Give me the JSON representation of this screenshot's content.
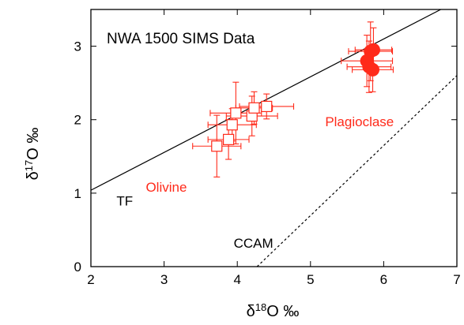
{
  "chart_data": {
    "type": "scatter",
    "title": "NWA 1500 SIMS Data",
    "xlabel": "δ18O ‰",
    "ylabel": "δ17O ‰",
    "xlim": [
      2,
      7
    ],
    "ylim": [
      0,
      3.5
    ],
    "xticks": [
      "2",
      "3",
      "4",
      "5",
      "6",
      "7"
    ],
    "yticks": [
      "0",
      "1",
      "2",
      "3"
    ],
    "grid": false,
    "lines": [
      {
        "name": "TF",
        "x": [
          2,
          6.78
        ],
        "y": [
          1.04,
          3.5
        ],
        "style": "solid",
        "color": "#000000"
      },
      {
        "name": "CCAM",
        "x": [
          4.27,
          7.0
        ],
        "y": [
          0.0,
          2.6
        ],
        "style": "dashed",
        "color": "#000000"
      }
    ],
    "series": [
      {
        "name": "Olivine",
        "marker": "open-square",
        "color": "#ff2a1a",
        "points": [
          {
            "x": 3.72,
            "y": 1.64,
            "xerr": 0.33,
            "yerr": 0.42
          },
          {
            "x": 3.88,
            "y": 1.73,
            "xerr": 0.28,
            "yerr": 0.27
          },
          {
            "x": 3.93,
            "y": 1.93,
            "xerr": 0.33,
            "yerr": 0.22
          },
          {
            "x": 3.98,
            "y": 2.09,
            "xerr": 0.35,
            "yerr": 0.42
          },
          {
            "x": 4.2,
            "y": 2.05,
            "xerr": 0.35,
            "yerr": 0.27
          },
          {
            "x": 4.23,
            "y": 2.16,
            "xerr": 0.25,
            "yerr": 0.22
          },
          {
            "x": 4.4,
            "y": 2.18,
            "xerr": 0.37,
            "yerr": 0.17
          }
        ]
      },
      {
        "name": "Plagioclase",
        "marker": "filled-circle",
        "color": "#ff2a1a",
        "points": [
          {
            "x": 5.77,
            "y": 2.8,
            "xerr": 0.35,
            "yerr": 0.35
          },
          {
            "x": 5.82,
            "y": 2.93,
            "xerr": 0.3,
            "yerr": 0.4
          },
          {
            "x": 5.86,
            "y": 2.95,
            "xerr": 0.25,
            "yerr": 0.3
          },
          {
            "x": 5.8,
            "y": 2.72,
            "xerr": 0.3,
            "yerr": 0.35
          },
          {
            "x": 5.85,
            "y": 2.68,
            "xerr": 0.28,
            "yerr": 0.3
          }
        ]
      }
    ],
    "annotations": [
      {
        "text": "TF",
        "x": 2.35,
        "y": 0.83,
        "color": "#000000"
      },
      {
        "text": "Olivine",
        "x": 2.75,
        "y": 1.02,
        "color": "#ff2a1a"
      },
      {
        "text": "Plagioclase",
        "x": 5.2,
        "y": 1.91,
        "color": "#ff2a1a"
      },
      {
        "text": "CCAM",
        "x": 3.95,
        "y": 0.26,
        "color": "#000000"
      }
    ]
  }
}
